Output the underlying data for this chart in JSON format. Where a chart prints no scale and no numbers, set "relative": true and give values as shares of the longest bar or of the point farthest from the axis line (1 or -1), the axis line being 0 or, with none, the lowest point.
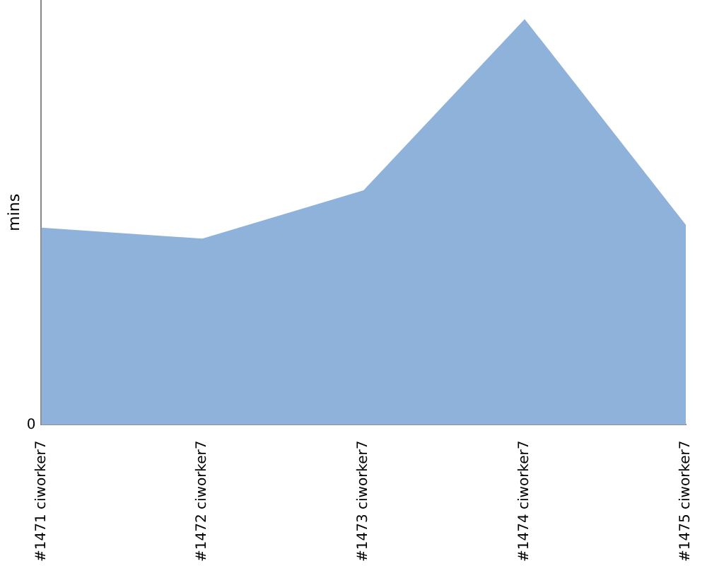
{
  "chart_data": {
    "type": "area",
    "ylabel": "mins",
    "relative": true,
    "annotations": [
      "0"
    ],
    "categories": [
      "#1471 ciworker7",
      "#1472 ciworker7",
      "#1473 ciworker7",
      "#1474 ciworker7",
      "#1475 ciworker7"
    ],
    "series": [
      {
        "color": "#8fb2da",
        "values": [
          0.486,
          0.459,
          0.578,
          1,
          0.493
        ]
      }
    ],
    "grid": false,
    "legend": false
  }
}
